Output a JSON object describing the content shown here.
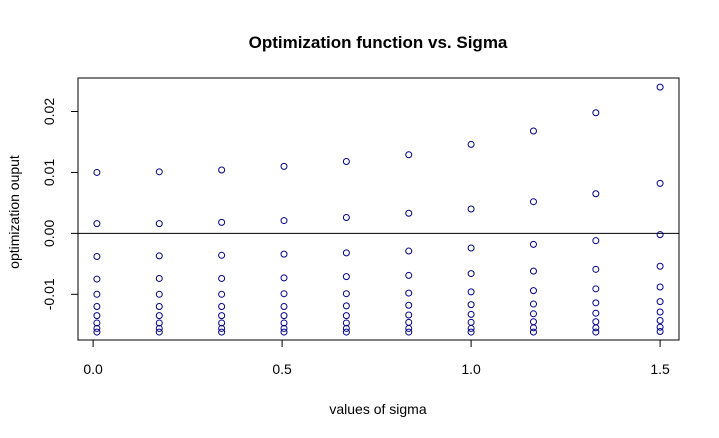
{
  "chart_data": {
    "type": "scatter",
    "title": "Optimization function vs. Sigma",
    "xlabel": "values of sigma",
    "ylabel": "optimization ouput",
    "xlim": [
      -0.04,
      1.55
    ],
    "ylim": [
      -0.0175,
      0.0255
    ],
    "x_ticks": [
      0.0,
      0.5,
      1.0,
      1.5
    ],
    "x_tick_labels": [
      "0.0",
      "0.5",
      "1.0",
      "1.5"
    ],
    "y_ticks": [
      -0.01,
      0.0,
      0.01,
      0.02
    ],
    "y_tick_labels": [
      "-0.01",
      "0.00",
      "0.01",
      "0.02"
    ],
    "reference_line_y": 0.0,
    "grid": false,
    "marker": "open-circle",
    "marker_color": "#00008b",
    "x": [
      0.01,
      0.175,
      0.34,
      0.505,
      0.67,
      0.835,
      1.0,
      1.165,
      1.33,
      1.5
    ],
    "series": [
      {
        "values": [
          0.01,
          0.0101,
          0.0104,
          0.011,
          0.0118,
          0.0129,
          0.0146,
          0.0168,
          0.0198,
          0.024
        ]
      },
      {
        "values": [
          0.0016,
          0.0016,
          0.0018,
          0.0021,
          0.0026,
          0.0033,
          0.004,
          0.0052,
          0.0065,
          0.0082
        ]
      },
      {
        "values": [
          -0.0038,
          -0.0037,
          -0.0036,
          -0.0034,
          -0.0032,
          -0.0029,
          -0.0024,
          -0.0018,
          -0.0012,
          -0.0002
        ]
      },
      {
        "values": [
          -0.0075,
          -0.0074,
          -0.0074,
          -0.0073,
          -0.0071,
          -0.0069,
          -0.0066,
          -0.0062,
          -0.0059,
          -0.0054
        ]
      },
      {
        "values": [
          -0.01,
          -0.01,
          -0.01,
          -0.0099,
          -0.0099,
          -0.0098,
          -0.0096,
          -0.0094,
          -0.0091,
          -0.0088
        ]
      },
      {
        "values": [
          -0.012,
          -0.012,
          -0.012,
          -0.012,
          -0.0119,
          -0.0118,
          -0.0117,
          -0.0116,
          -0.0114,
          -0.0112
        ]
      },
      {
        "values": [
          -0.0135,
          -0.0135,
          -0.0135,
          -0.0135,
          -0.0135,
          -0.0134,
          -0.0133,
          -0.0132,
          -0.0131,
          -0.0129
        ]
      },
      {
        "values": [
          -0.0147,
          -0.0147,
          -0.0147,
          -0.0147,
          -0.0147,
          -0.0146,
          -0.0146,
          -0.0145,
          -0.0145,
          -0.0143
        ]
      },
      {
        "values": [
          -0.0156,
          -0.0156,
          -0.0156,
          -0.0156,
          -0.0156,
          -0.0156,
          -0.0156,
          -0.0155,
          -0.0155,
          -0.0154
        ]
      },
      {
        "values": [
          -0.0162,
          -0.0162,
          -0.0162,
          -0.0162,
          -0.0162,
          -0.0162,
          -0.0162,
          -0.0162,
          -0.0162,
          -0.0161
        ]
      }
    ]
  }
}
